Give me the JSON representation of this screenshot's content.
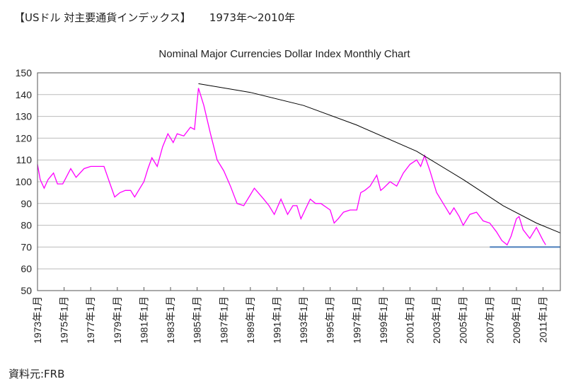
{
  "header": {
    "title": "【USドル 対主要通貨インデックス】",
    "range": "1973年〜2010年"
  },
  "source": "資料元:FRB",
  "chart_data": {
    "type": "line",
    "title": "Nominal Major Currencies Dollar Index Monthly Chart",
    "xlabel": "",
    "ylabel": "",
    "xlim": [
      1973.0,
      2012.3
    ],
    "ylim": [
      50,
      150
    ],
    "grid": true,
    "yticks": [
      50,
      60,
      70,
      80,
      90,
      100,
      110,
      120,
      130,
      140,
      150
    ],
    "xtick_labels": [
      "1973年1月",
      "1975年1月",
      "1977年1月",
      "1979年1月",
      "1981年1月",
      "1983年1月",
      "1985年1月",
      "1987年1月",
      "1989年1月",
      "1991年1月",
      "1993年1月",
      "1995年1月",
      "1997年1月",
      "1999年1月",
      "2001年1月",
      "2003年1月",
      "2005年1月",
      "2007年1月",
      "2009年1月",
      "2011年1月"
    ],
    "series": [
      {
        "color": "#ff00ff",
        "x": [
          1973.0,
          1973.2,
          1973.5,
          1973.8,
          1974.2,
          1974.5,
          1974.9,
          1975.5,
          1975.9,
          1976.5,
          1977.0,
          1977.5,
          1978.0,
          1978.4,
          1978.8,
          1979.2,
          1979.6,
          1980.0,
          1980.3,
          1980.7,
          1981.0,
          1981.3,
          1981.6,
          1982.0,
          1982.4,
          1982.8,
          1983.2,
          1983.5,
          1984.0,
          1984.5,
          1984.8,
          1985.1,
          1985.5,
          1986.0,
          1986.5,
          1987.0,
          1987.5,
          1988.0,
          1988.5,
          1988.9,
          1989.3,
          1990.0,
          1990.4,
          1990.8,
          1991.3,
          1991.8,
          1992.2,
          1992.5,
          1992.8,
          1993.5,
          1993.9,
          1994.3,
          1995.0,
          1995.3,
          1995.6,
          1996.0,
          1996.5,
          1997.0,
          1997.3,
          1997.6,
          1998.0,
          1998.5,
          1998.8,
          1999.0,
          1999.5,
          2000.0,
          2000.5,
          2001.0,
          2001.5,
          2001.8,
          2002.1,
          2002.5,
          2003.0,
          2003.5,
          2004.0,
          2004.3,
          2004.7,
          2005.0,
          2005.5,
          2006.0,
          2006.5,
          2007.0,
          2007.5,
          2007.9,
          2008.3,
          2008.6,
          2009.0,
          2009.2,
          2009.5,
          2010.0,
          2010.5,
          2011.0,
          2011.2
        ],
        "y": [
          108,
          101,
          97,
          101,
          104,
          99,
          99,
          106,
          102,
          106,
          107,
          107,
          107,
          100,
          93,
          95,
          96,
          96,
          93,
          97,
          100,
          106,
          111,
          107,
          116,
          122,
          118,
          122,
          121,
          125,
          124,
          143,
          135,
          122,
          110,
          105,
          98,
          90,
          89,
          93,
          97,
          92,
          89,
          85,
          92,
          85,
          89,
          89,
          83,
          92,
          90,
          90,
          87,
          81,
          83,
          86,
          87,
          87,
          95,
          96,
          98,
          103,
          96,
          97,
          100,
          98,
          104,
          108,
          110,
          107,
          112,
          105,
          95,
          90,
          85,
          88,
          84,
          80,
          85,
          86,
          82,
          81,
          77,
          73,
          71,
          75,
          83,
          84,
          78,
          74,
          79,
          73,
          71
        ]
      },
      {
        "color": "#000000",
        "x": [
          1985.1,
          1989.0,
          1993.0,
          1997.0,
          2001.5,
          2005.0,
          2008.0,
          2010.5,
          2012.3
        ],
        "y": [
          145,
          141,
          135,
          126,
          114,
          101,
          89,
          81,
          76.5
        ]
      },
      {
        "color": "#4a7ebb",
        "x": [
          2007.0,
          2012.3
        ],
        "y": [
          70,
          70
        ]
      }
    ]
  }
}
